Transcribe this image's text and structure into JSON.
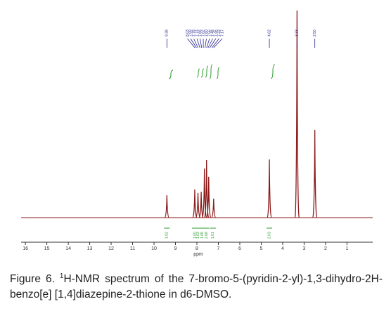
{
  "chart_data": {
    "type": "nmr",
    "x_label": "ppm",
    "xlim": [
      16.2,
      -0.2
    ],
    "xticks": [
      16,
      15,
      14,
      13,
      12,
      11,
      10,
      9,
      8,
      7,
      6,
      5,
      4,
      3,
      2,
      1
    ],
    "ylim": [
      0,
      100
    ],
    "color": "#8b1a1a",
    "peaks": {
      "x": [
        9.4,
        8.1,
        7.95,
        7.8,
        7.65,
        7.55,
        7.45,
        7.22,
        4.62,
        3.33,
        2.5
      ],
      "values": [
        10.8,
        13.6,
        11.9,
        12.5,
        23.7,
        27.8,
        19.7,
        9.2,
        28.1,
        100,
        42.4
      ]
    },
    "peak_labels": {
      "x": [
        9.4,
        8.1,
        8.02,
        7.95,
        7.86,
        7.78,
        7.7,
        7.62,
        7.55,
        7.48,
        7.4,
        7.3,
        7.22,
        4.62,
        3.33,
        2.5
      ],
      "labels": [
        "9.38",
        "8.03",
        "7.99",
        "7.78",
        "7.74",
        "7.66",
        "7.62",
        "7.60",
        "7.56",
        "7.48",
        "7.46",
        "7.22",
        "7.17",
        "4.62",
        "3.33",
        "2.50"
      ]
    },
    "integrals": {
      "x": [
        9.4,
        8.1,
        7.95,
        7.75,
        7.55,
        7.25,
        4.62
      ],
      "labels": [
        "1.02",
        "1.00",
        "1.03",
        "1.05",
        "2.08",
        "1.01",
        "2.03"
      ]
    },
    "caption": {
      "label": "Figure 6.",
      "superscript": "1",
      "text": "H-NMR spectrum of the 7-bromo-5-(pyridin-2-yl)-1,3-dihydro-2H-benzo[e] [1,4]diazepine-2-thione in d6-DMSO."
    }
  }
}
